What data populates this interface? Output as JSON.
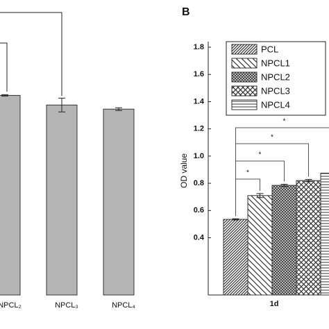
{
  "chart_data": [
    {
      "type": "bar",
      "categories": [
        "NPCL₂",
        "NPCL₃",
        "NPCL₄"
      ],
      "values": [
        1.45,
        1.38,
        1.35
      ],
      "errors": [
        0.005,
        0.05,
        0.01
      ],
      "color": "#b4b4b4",
      "ylim": [
        0,
        1.8
      ]
    },
    {
      "type": "grouped-bar",
      "panel_label": "B",
      "y_label": "OD value",
      "categories": [
        "1d"
      ],
      "series": [
        {
          "name": "PCL",
          "pattern": "diag-dense",
          "color": "#333333",
          "values": [
            0.535
          ],
          "errors": [
            0.005
          ]
        },
        {
          "name": "NPCL1",
          "pattern": "backslash",
          "color": "#333333",
          "values": [
            0.71
          ],
          "errors": [
            0.015
          ]
        },
        {
          "name": "NPCL2",
          "pattern": "checker",
          "color": "#333333",
          "values": [
            0.785
          ],
          "errors": [
            0.008
          ]
        },
        {
          "name": "NPCL3",
          "pattern": "crosshatch",
          "color": "#333333",
          "values": [
            0.82
          ],
          "errors": [
            0.008
          ]
        },
        {
          "name": "NPCL4",
          "pattern": "horizontal",
          "color": "#333333",
          "values": [
            0.875
          ],
          "errors": [
            0.008
          ]
        }
      ],
      "annotations": [
        "*",
        "*",
        "*",
        "*"
      ],
      "ylim": [
        0,
        1.8
      ],
      "yticks": [
        0.4,
        0.6,
        0.8,
        {
          "value": 1,
          "label": "1.0"
        },
        1.2,
        1.4,
        1.6,
        1.8
      ]
    }
  ]
}
